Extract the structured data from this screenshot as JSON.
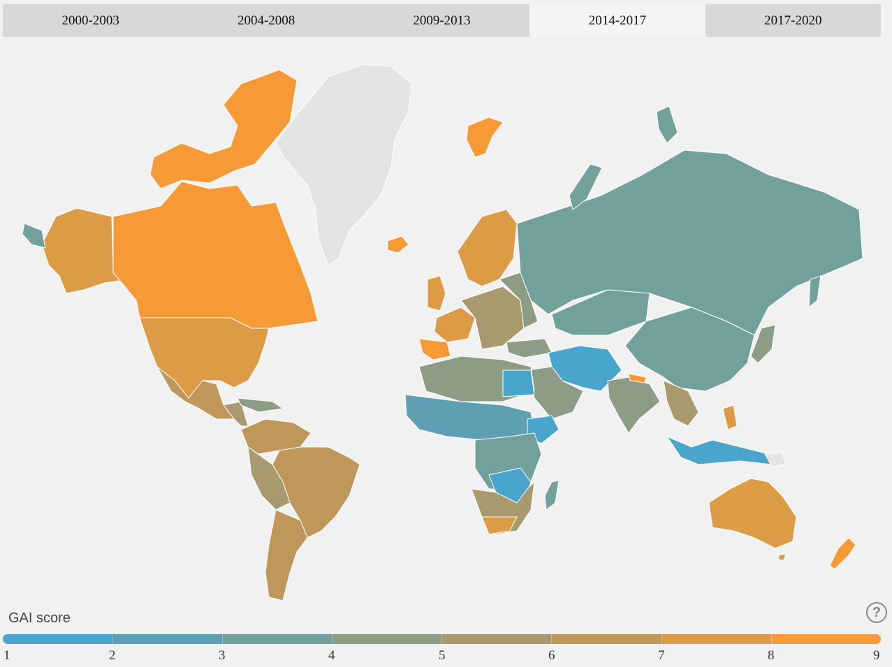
{
  "tabs": [
    {
      "label": "2000-2003",
      "active": false
    },
    {
      "label": "2004-2008",
      "active": false
    },
    {
      "label": "2009-2013",
      "active": false
    },
    {
      "label": "2014-2017",
      "active": true
    },
    {
      "label": "2017-2020",
      "active": false
    }
  ],
  "legend": {
    "title": "GAI score",
    "ticks": [
      "1",
      "2",
      "3",
      "4",
      "5",
      "6",
      "7",
      "8",
      "9"
    ],
    "colors": [
      "#4aa5cd",
      "#5f9fb3",
      "#72a19c",
      "#8d9c84",
      "#a89a6e",
      "#c0975a",
      "#dc9b45",
      "#f59a36"
    ]
  },
  "help_icon": "question-circle-icon",
  "map_colors": {
    "ocean": "#f1f1f1",
    "no_data": "#e4e4e4",
    "border": "#ffffff"
  }
}
